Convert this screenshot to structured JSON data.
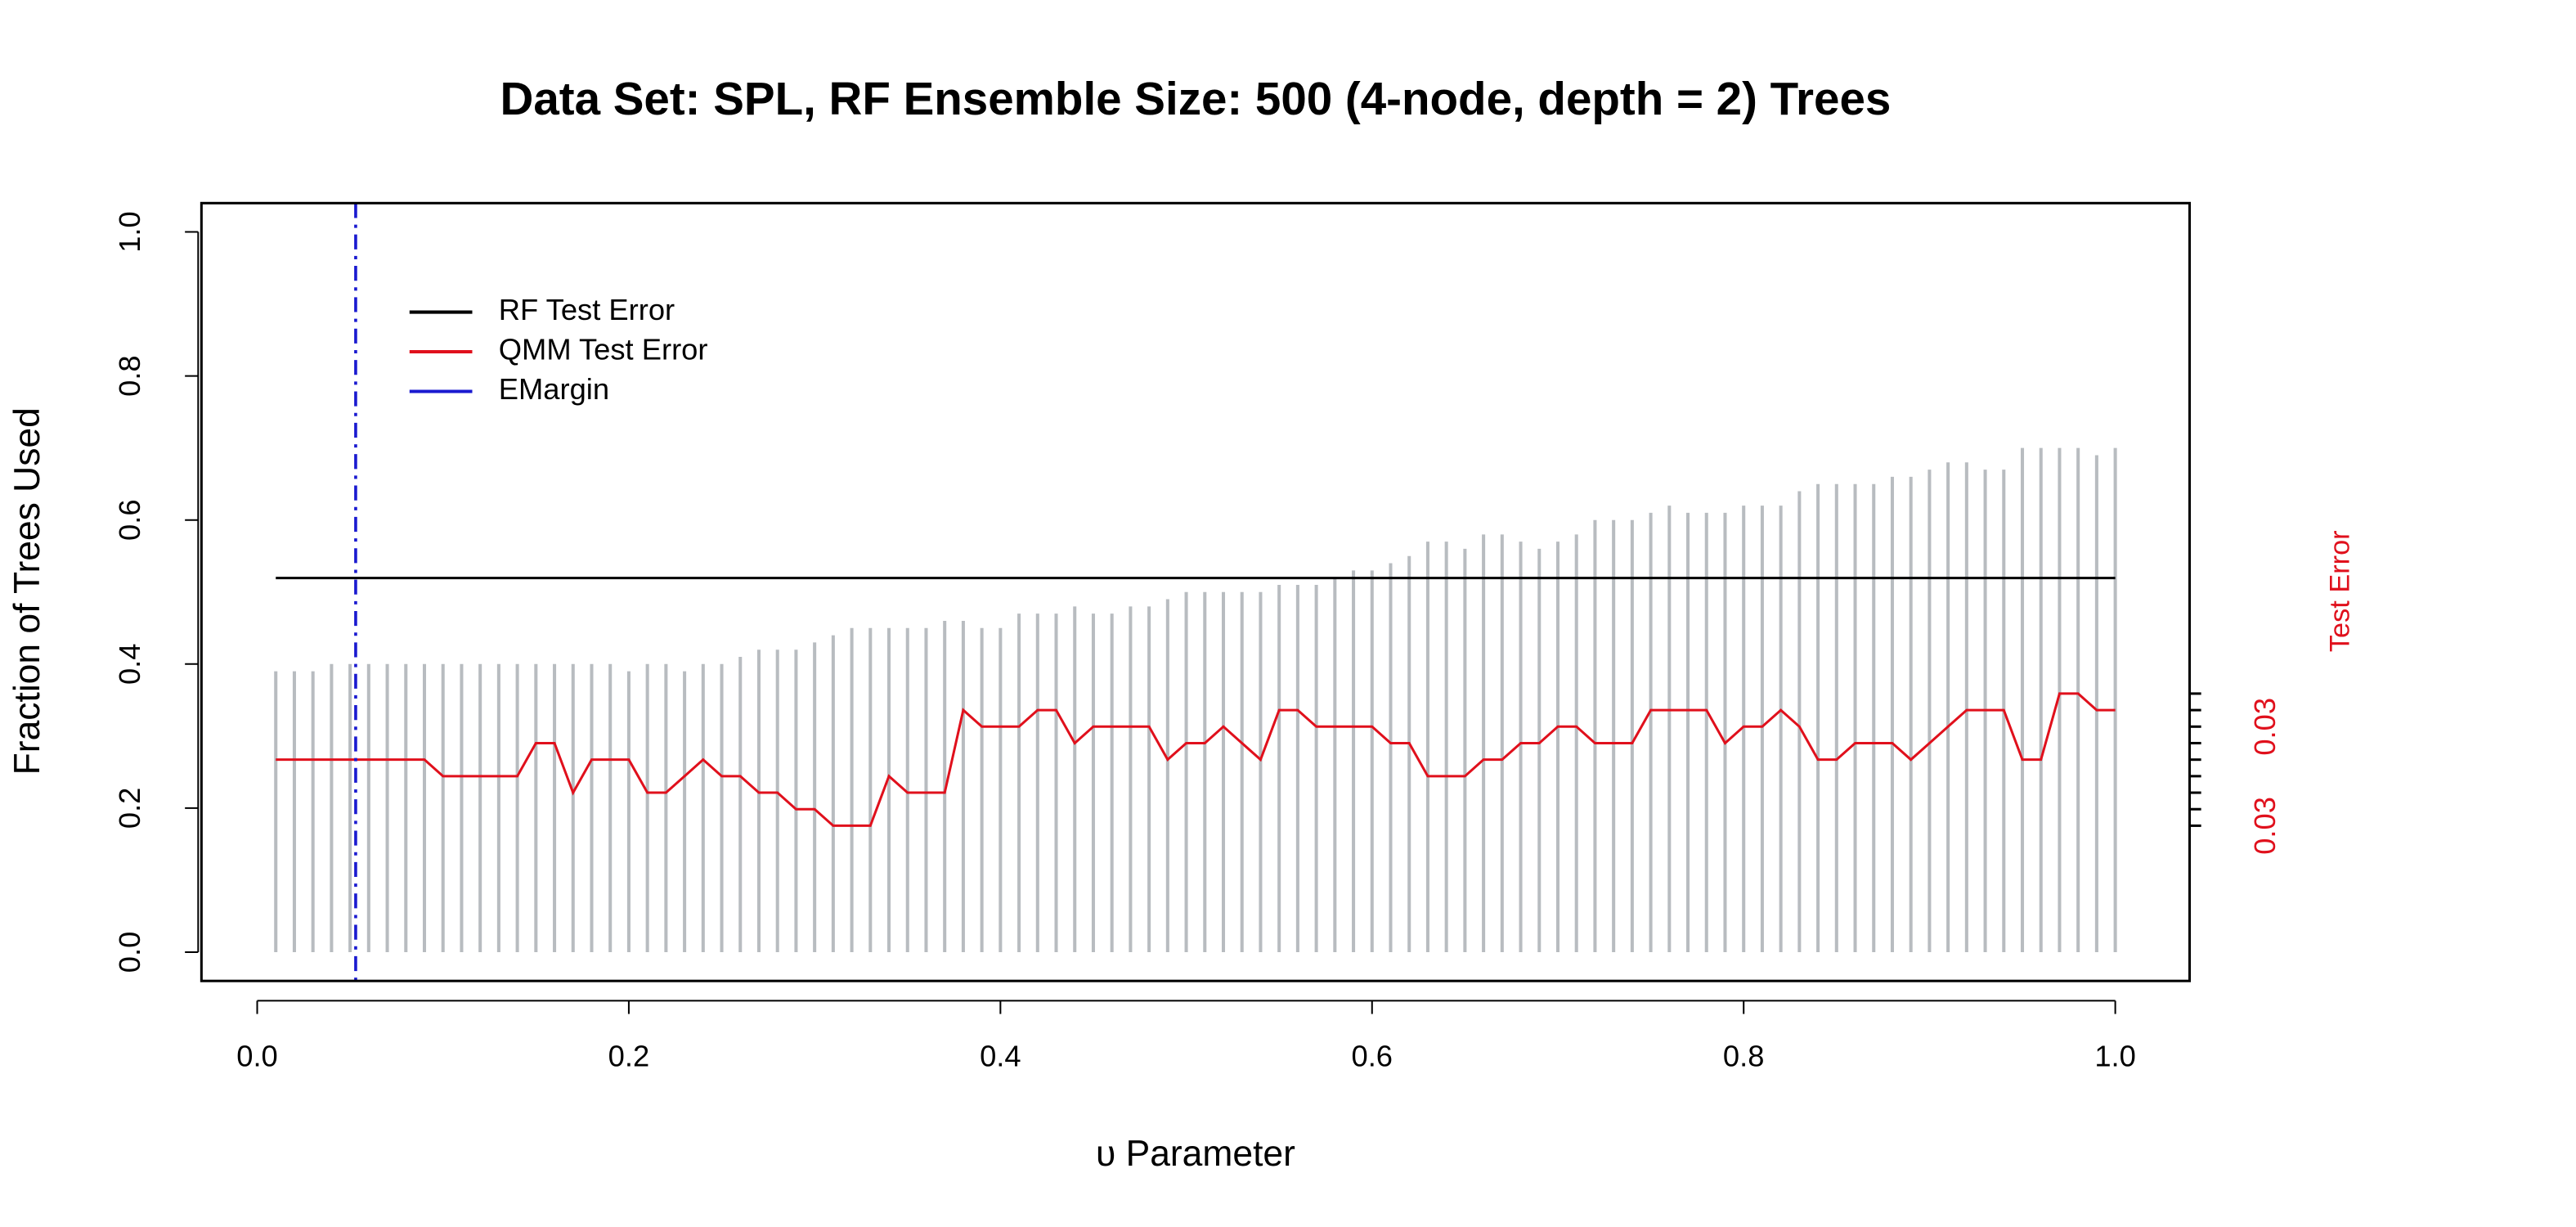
{
  "chart_data": {
    "type": "bar-line",
    "title": "Data Set: SPL, RF Ensemble Size: 500 (4-node, depth = 2) Trees",
    "xlabel": "υ Parameter",
    "ylabel": "Fraction of Trees Used",
    "y2label": "Test Error",
    "x": [
      0.01,
      0.02,
      0.03,
      0.04,
      0.05,
      0.06,
      0.07,
      0.08,
      0.09,
      0.1,
      0.11,
      0.12,
      0.13,
      0.14,
      0.15,
      0.16,
      0.17,
      0.18,
      0.19,
      0.2,
      0.21,
      0.22,
      0.23,
      0.24,
      0.25,
      0.26,
      0.27,
      0.28,
      0.29,
      0.3,
      0.31,
      0.32,
      0.33,
      0.34,
      0.35,
      0.36,
      0.37,
      0.38,
      0.39,
      0.4,
      0.41,
      0.42,
      0.43,
      0.44,
      0.45,
      0.46,
      0.47,
      0.48,
      0.49,
      0.5,
      0.51,
      0.52,
      0.53,
      0.54,
      0.55,
      0.56,
      0.57,
      0.58,
      0.59,
      0.6,
      0.61,
      0.62,
      0.63,
      0.64,
      0.65,
      0.66,
      0.67,
      0.68,
      0.69,
      0.7,
      0.71,
      0.72,
      0.73,
      0.74,
      0.75,
      0.76,
      0.77,
      0.78,
      0.79,
      0.8,
      0.81,
      0.82,
      0.83,
      0.84,
      0.85,
      0.86,
      0.87,
      0.88,
      0.89,
      0.9,
      0.91,
      0.92,
      0.93,
      0.94,
      0.95,
      0.96,
      0.97,
      0.98,
      0.99,
      1.0
    ],
    "bars": {
      "color": "#b8bcc0",
      "values": [
        0.39,
        0.39,
        0.39,
        0.4,
        0.4,
        0.4,
        0.4,
        0.4,
        0.4,
        0.4,
        0.4,
        0.4,
        0.4,
        0.4,
        0.4,
        0.4,
        0.4,
        0.4,
        0.4,
        0.39,
        0.4,
        0.4,
        0.39,
        0.4,
        0.4,
        0.41,
        0.42,
        0.42,
        0.42,
        0.43,
        0.44,
        0.45,
        0.45,
        0.45,
        0.45,
        0.45,
        0.46,
        0.46,
        0.45,
        0.45,
        0.47,
        0.47,
        0.47,
        0.48,
        0.47,
        0.47,
        0.48,
        0.48,
        0.49,
        0.5,
        0.5,
        0.5,
        0.5,
        0.5,
        0.51,
        0.51,
        0.51,
        0.52,
        0.53,
        0.53,
        0.54,
        0.55,
        0.57,
        0.57,
        0.56,
        0.58,
        0.58,
        0.57,
        0.56,
        0.57,
        0.58,
        0.6,
        0.6,
        0.6,
        0.61,
        0.62,
        0.61,
        0.61,
        0.61,
        0.62,
        0.62,
        0.62,
        0.64,
        0.65,
        0.65,
        0.65,
        0.65,
        0.66,
        0.66,
        0.67,
        0.68,
        0.68,
        0.67,
        0.67,
        0.7,
        0.7,
        0.7,
        0.7,
        0.69,
        0.7
      ]
    },
    "series": [
      {
        "name": "RF Test Error",
        "color": "#000000",
        "axis": "y2",
        "value": 0.037
      },
      {
        "name": "QMM Test Error",
        "color": "#e0101c",
        "axis": "y2",
        "values": [
          0.0315,
          0.0315,
          0.0315,
          0.0315,
          0.0315,
          0.0315,
          0.0315,
          0.0315,
          0.0315,
          0.031,
          0.031,
          0.031,
          0.031,
          0.031,
          0.032,
          0.032,
          0.0305,
          0.0315,
          0.0315,
          0.0315,
          0.0305,
          0.0305,
          0.031,
          0.0315,
          0.031,
          0.031,
          0.0305,
          0.0305,
          0.03,
          0.03,
          0.0295,
          0.0295,
          0.0295,
          0.031,
          0.0305,
          0.0305,
          0.0305,
          0.033,
          0.0325,
          0.0325,
          0.0325,
          0.033,
          0.033,
          0.032,
          0.0325,
          0.0325,
          0.0325,
          0.0325,
          0.0315,
          0.032,
          0.032,
          0.0325,
          0.032,
          0.0315,
          0.033,
          0.033,
          0.0325,
          0.0325,
          0.0325,
          0.0325,
          0.032,
          0.032,
          0.031,
          0.031,
          0.031,
          0.0315,
          0.0315,
          0.032,
          0.032,
          0.0325,
          0.0325,
          0.032,
          0.032,
          0.032,
          0.033,
          0.033,
          0.033,
          0.033,
          0.032,
          0.0325,
          0.0325,
          0.033,
          0.0325,
          0.0315,
          0.0315,
          0.032,
          0.032,
          0.032,
          0.0315,
          0.032,
          0.0325,
          0.033,
          0.033,
          0.033,
          0.0315,
          0.0315,
          0.0335,
          0.0335,
          0.033,
          0.033
        ]
      },
      {
        "name": "EMargin",
        "color": "#1a1ad0",
        "x_value": 0.053
      }
    ],
    "xlim": [
      -0.03,
      1.04
    ],
    "ylim": [
      -0.04,
      1.04
    ],
    "y2lim": [
      0.0248,
      0.04835
    ],
    "xticks": [
      {
        "value": 0,
        "label": "0.0"
      },
      0.2,
      0.4,
      0.6,
      0.8,
      {
        "value": 1,
        "label": "1.0"
      }
    ],
    "yticks": [
      {
        "value": 0,
        "label": "0.0"
      },
      0.2,
      0.4,
      0.6,
      0.8,
      {
        "value": 1,
        "label": "1.0"
      }
    ],
    "y2ticks": [
      {
        "value": 0.0295,
        "label": "0.03"
      },
      {
        "value": 0.0325,
        "label": "0.03"
      }
    ],
    "y2minor_ticks": [
      0.03,
      0.0305,
      0.031,
      0.0315,
      0.032,
      0.033,
      0.0335
    ],
    "y2color": "#e0101c",
    "legend": "top-left"
  }
}
